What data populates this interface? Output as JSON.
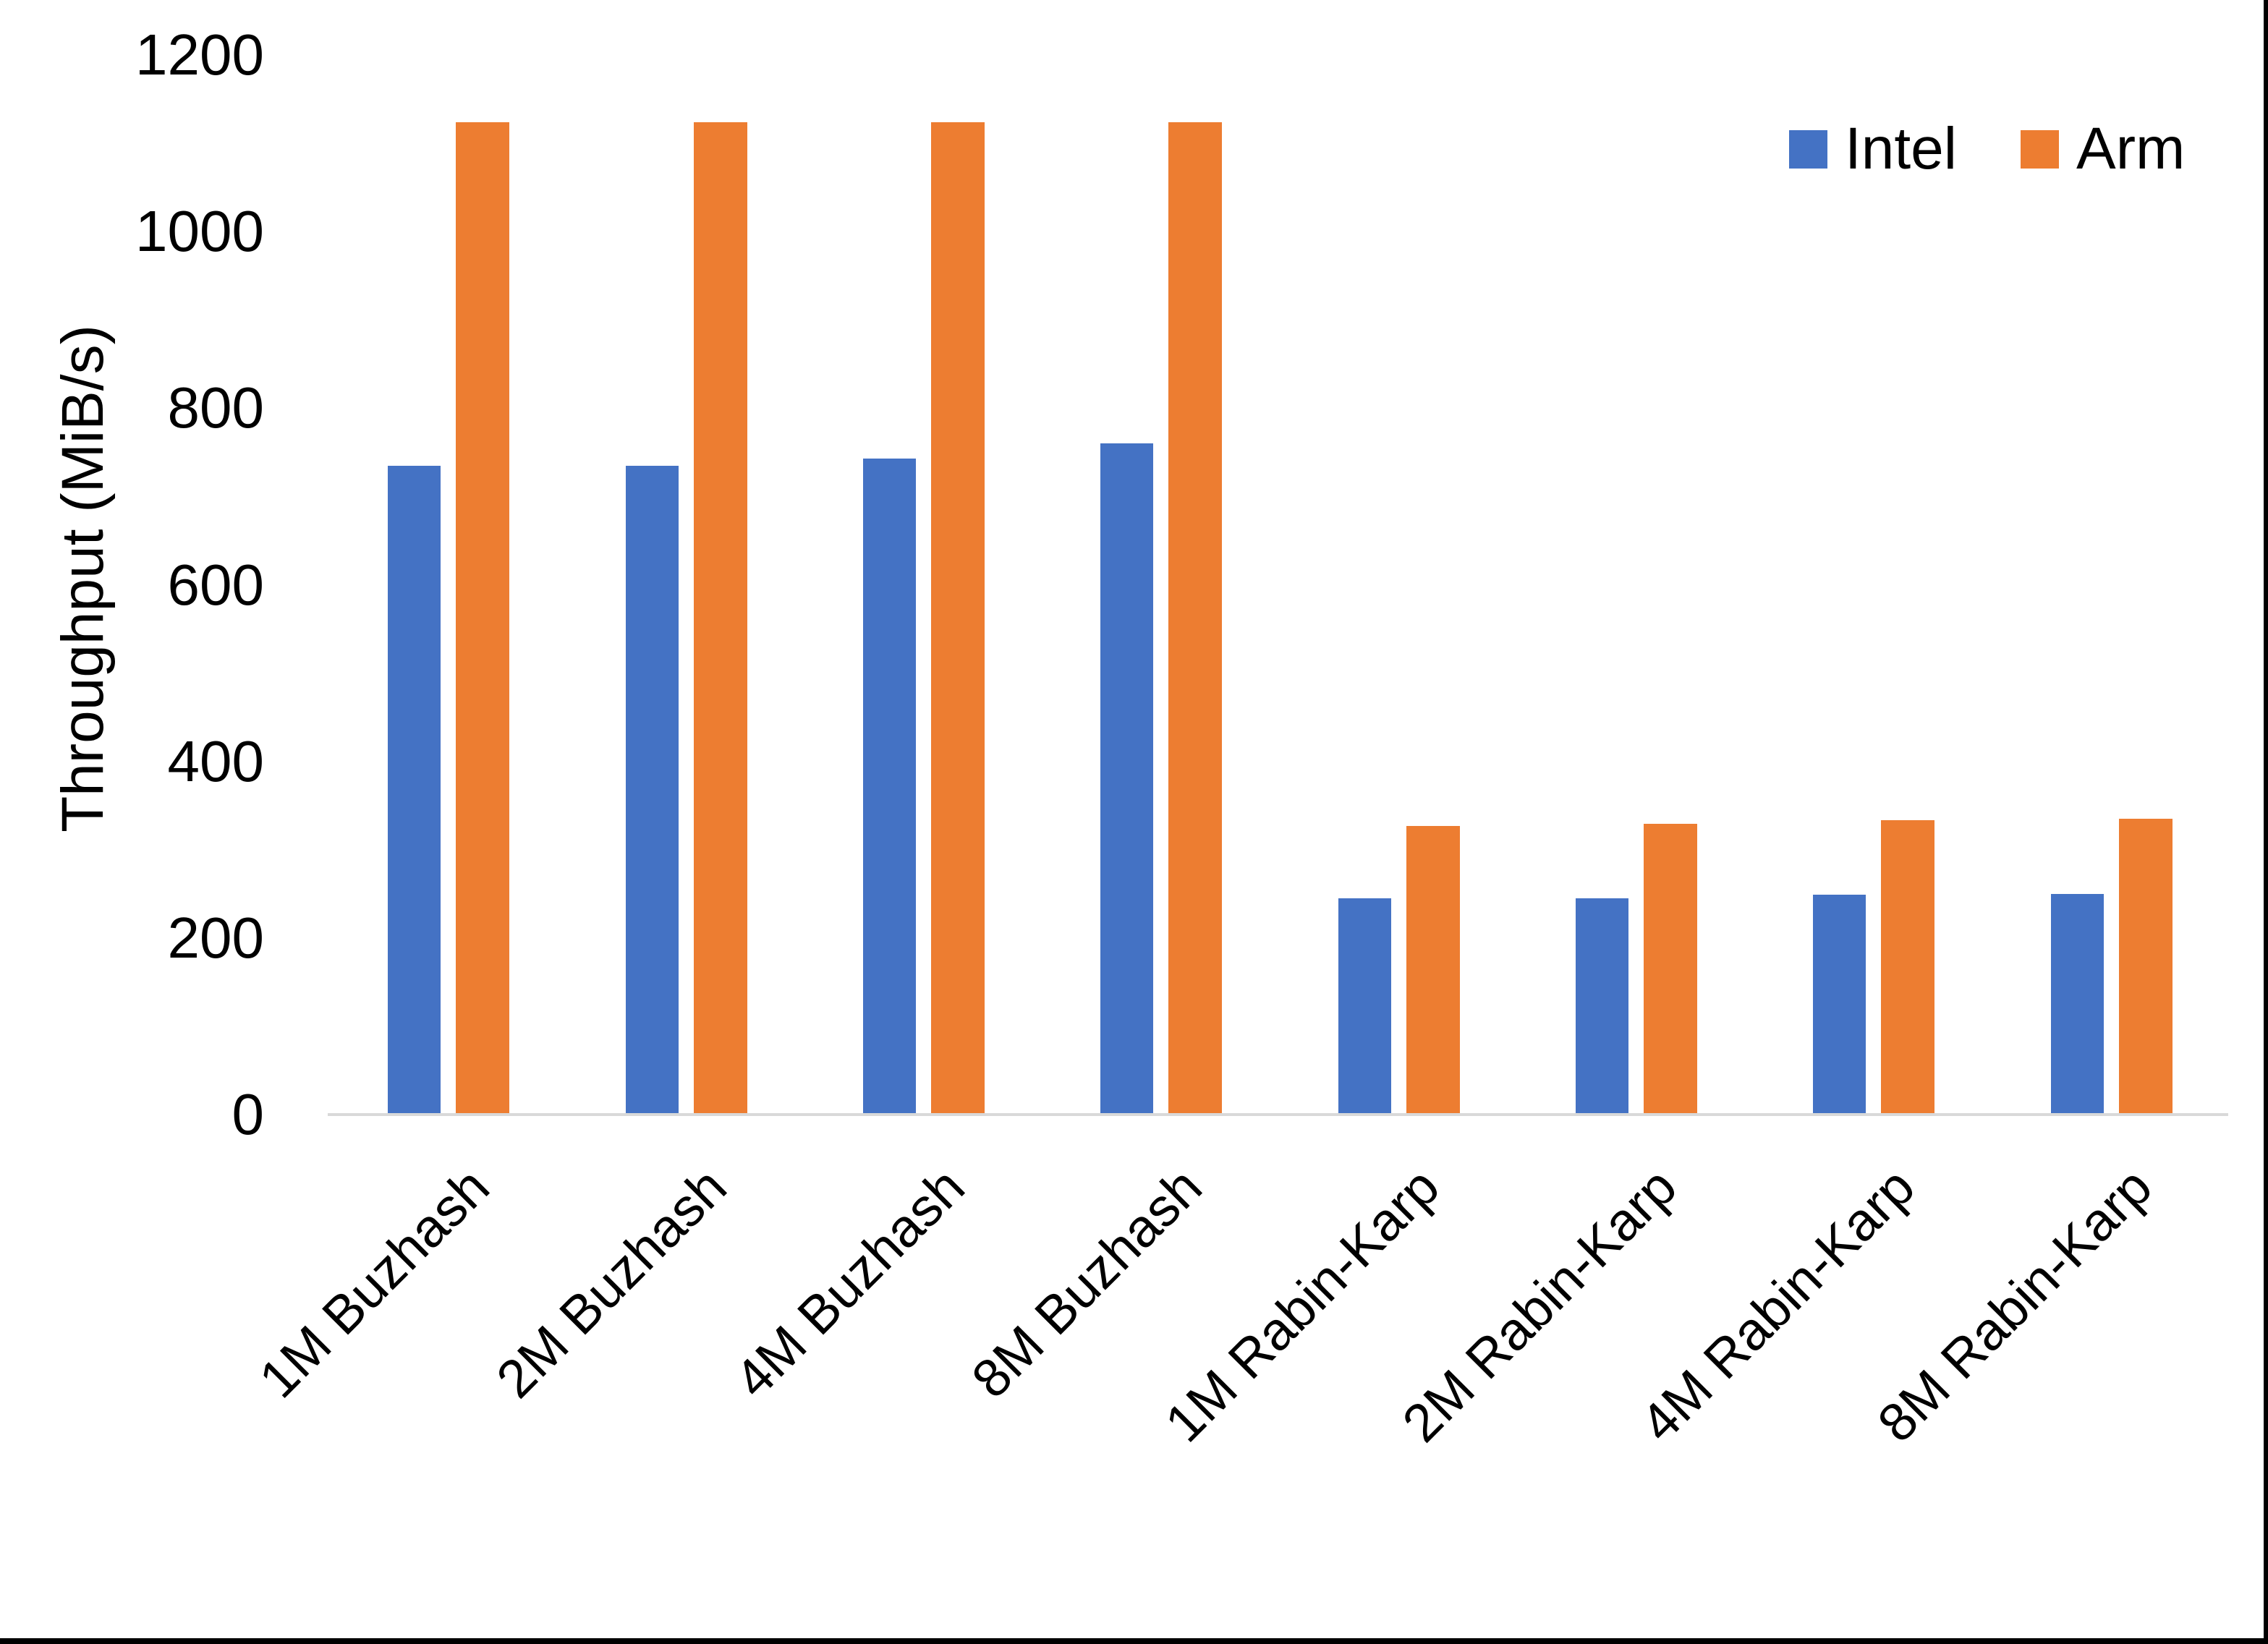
{
  "chart_data": {
    "type": "bar",
    "title": "",
    "ylabel": "Throughput (MiB/s)",
    "xlabel": "",
    "categories": [
      "1M Buzhash",
      "2M Buzhash",
      "4M Buzhash",
      "8M Buzhash",
      "1M Rabin-Karp",
      "2M Rabin-Karp",
      "4M Rabin-Karp",
      "8M Rabin-Karp"
    ],
    "series": [
      {
        "name": "Intel",
        "color": "#4472C4",
        "values": [
          735,
          735,
          743,
          760,
          245,
          245,
          249,
          250
        ]
      },
      {
        "name": "Arm",
        "color": "#ED7D31",
        "values": [
          1124,
          1124,
          1124,
          1124,
          327,
          329,
          333,
          335
        ]
      }
    ],
    "ylim": [
      0,
      1200
    ],
    "ytick_step": 200,
    "yticks": [
      0,
      200,
      400,
      600,
      800,
      1000,
      1200
    ],
    "grid": false,
    "legend_position": "top-right",
    "axis_line_color": "#D9D9D9",
    "text_color": "#000000",
    "background_color": "#FFFFFF"
  }
}
